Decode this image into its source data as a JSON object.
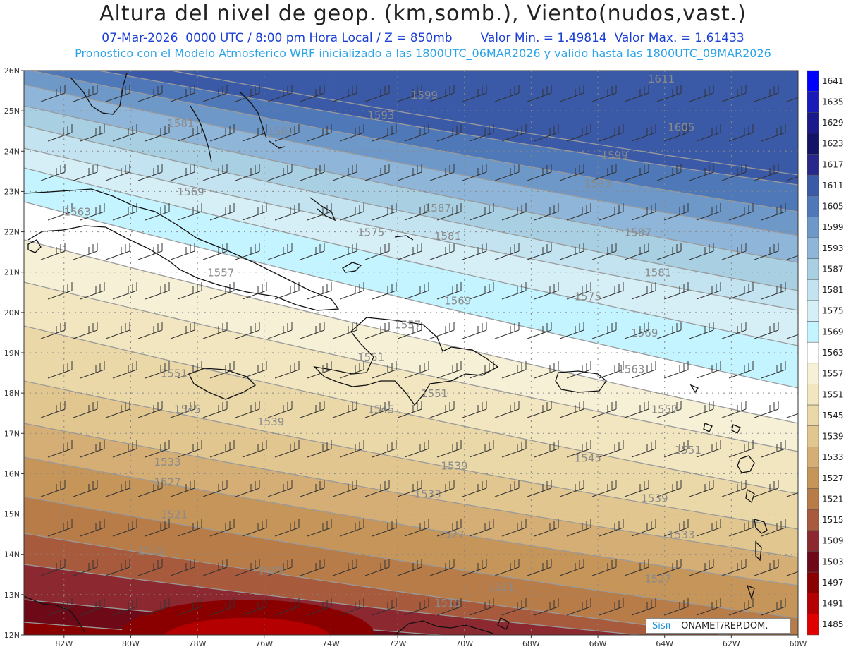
{
  "header": {
    "title": "Altura del nivel de geop. (km,somb.), Viento(nudos,vast.)",
    "date": "07-Mar-2026",
    "time": "0000 UTC / 8:00 pm Hora Local / Z = 850mb",
    "min": "Valor Min. = 1.49814",
    "max": "Valor Max. = 1.61433",
    "forecast": "Pronostico con el Modelo Atmosferico WRF inicializado a las 1800UTC_06MAR2026 y valido hasta las  1800UTC_09MAR2026"
  },
  "chart_data": {
    "type": "heatmap",
    "lat_labels": [
      "26N",
      "25N",
      "24N",
      "23N",
      "22N",
      "21N",
      "20N",
      "19N",
      "18N",
      "17N",
      "16N",
      "15N",
      "14N",
      "13N",
      "12N"
    ],
    "lon_labels": [
      "82W",
      "80W",
      "78W",
      "76W",
      "74W",
      "72W",
      "70W",
      "68W",
      "66W",
      "64W",
      "62W",
      "60W"
    ],
    "lat_range": [
      12,
      26
    ],
    "lon_range": [
      -83.2,
      -60
    ],
    "colorbar": {
      "levels": [
        "1641",
        "1635",
        "1629",
        "1623",
        "1617",
        "1611",
        "1605",
        "1599",
        "1593",
        "1587",
        "1581",
        "1575",
        "1569",
        "1563",
        "1557",
        "1551",
        "1545",
        "1539",
        "1533",
        "1527",
        "1521",
        "1515",
        "1509",
        "1503",
        "1497",
        "1491",
        "1485"
      ],
      "colors": [
        "#0000ff",
        "#1a1ab8",
        "#1a1a8a",
        "#141466",
        "#28288a",
        "#3a5aa8",
        "#4f78b8",
        "#6e98c8",
        "#8fb6d8",
        "#a9cfe2",
        "#c2e3ef",
        "#d6eff7",
        "#c4f4ff",
        "#ffffff",
        "#f6f0d6",
        "#f1e6c0",
        "#ead8a8",
        "#e1c690",
        "#d4ae74",
        "#c6955a",
        "#b87c48",
        "#a85a3c",
        "#8c2830",
        "#6e0a18",
        "#8a0000",
        "#b40000",
        "#e00000"
      ]
    },
    "contours": [
      {
        "label": "1611",
        "lat": 25.7,
        "lon": -64.1
      },
      {
        "label": "1605",
        "lat": 24.5,
        "lon": -63.5
      },
      {
        "label": "1599",
        "lat": 25.3,
        "lon": -71.2
      },
      {
        "label": "1599",
        "lat": 23.8,
        "lon": -65.5
      },
      {
        "label": "1593",
        "lat": 24.8,
        "lon": -72.5
      },
      {
        "label": "1593",
        "lat": 23.1,
        "lon": -66.0
      },
      {
        "label": "1587",
        "lat": 24.4,
        "lon": -75.5
      },
      {
        "label": "1587",
        "lat": 22.5,
        "lon": -70.8
      },
      {
        "label": "1587",
        "lat": 21.9,
        "lon": -64.8
      },
      {
        "label": "1581",
        "lat": 24.6,
        "lon": -78.5
      },
      {
        "label": "1581",
        "lat": 21.8,
        "lon": -70.5
      },
      {
        "label": "1581",
        "lat": 20.9,
        "lon": -64.2
      },
      {
        "label": "1575",
        "lat": 21.9,
        "lon": -72.8
      },
      {
        "label": "1575",
        "lat": 20.3,
        "lon": -66.3
      },
      {
        "label": "1569",
        "lat": 22.9,
        "lon": -78.2
      },
      {
        "label": "1569",
        "lat": 20.2,
        "lon": -70.2
      },
      {
        "label": "1569",
        "lat": 19.4,
        "lon": -64.6
      },
      {
        "label": "1563",
        "lat": 22.4,
        "lon": -81.6
      },
      {
        "label": "1563",
        "lat": 18.5,
        "lon": -65.0
      },
      {
        "label": "1557",
        "lat": 20.9,
        "lon": -77.3
      },
      {
        "label": "1557",
        "lat": 19.6,
        "lon": -71.7
      },
      {
        "label": "1557",
        "lat": 17.5,
        "lon": -64.0
      },
      {
        "label": "1551",
        "lat": 18.4,
        "lon": -78.7
      },
      {
        "label": "1551",
        "lat": 18.8,
        "lon": -72.8
      },
      {
        "label": "1551",
        "lat": 17.9,
        "lon": -70.9
      },
      {
        "label": "1551",
        "lat": 16.5,
        "lon": -63.3
      },
      {
        "label": "1545",
        "lat": 17.5,
        "lon": -78.3
      },
      {
        "label": "1545",
        "lat": 17.5,
        "lon": -72.5
      },
      {
        "label": "1545",
        "lat": 16.3,
        "lon": -66.3
      },
      {
        "label": "1539",
        "lat": 17.2,
        "lon": -75.8
      },
      {
        "label": "1539",
        "lat": 16.1,
        "lon": -70.3
      },
      {
        "label": "1539",
        "lat": 15.3,
        "lon": -64.3
      },
      {
        "label": "1533",
        "lat": 16.2,
        "lon": -78.9
      },
      {
        "label": "1533",
        "lat": 15.4,
        "lon": -71.1
      },
      {
        "label": "1533",
        "lat": 14.4,
        "lon": -63.5
      },
      {
        "label": "1527",
        "lat": 15.7,
        "lon": -78.9
      },
      {
        "label": "1527",
        "lat": 14.4,
        "lon": -70.4
      },
      {
        "label": "1527",
        "lat": 13.3,
        "lon": -64.2
      },
      {
        "label": "1521",
        "lat": 14.9,
        "lon": -78.7
      },
      {
        "label": "1521",
        "lat": 13.1,
        "lon": -68.9
      },
      {
        "label": "1515",
        "lat": 14.0,
        "lon": -79.4
      },
      {
        "label": "1515",
        "lat": 12.7,
        "lon": -70.5
      },
      {
        "label": "1509",
        "lat": 13.5,
        "lon": -75.8
      }
    ]
  },
  "brand": {
    "sis": "Sisπ",
    "org": "– ONAMET/REP.DOM."
  }
}
